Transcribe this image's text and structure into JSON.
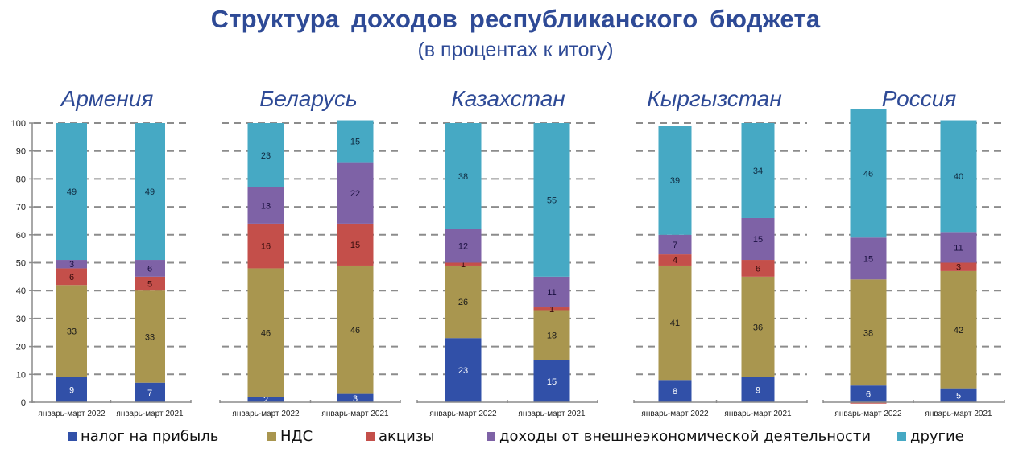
{
  "header": {
    "title": "Структура доходов республиканского бюджета",
    "subtitle": "(в процентах к итогу)"
  },
  "colors": {
    "profit_tax": "#3150a8",
    "vat": "#a9964f",
    "excise": "#c44f4a",
    "foreign_trade": "#7e62a6",
    "other": "#46a9c4",
    "panel_title": "#2e4a96",
    "grid": "#8c8c8c",
    "axis": "#8c8c8c"
  },
  "chart_data": {
    "type": "bar",
    "stacked": true,
    "title": "Структура доходов республиканского бюджета",
    "subtitle": "(в процентах к итогу)",
    "ylim": [
      0,
      100
    ],
    "yticks": [
      0,
      10,
      20,
      30,
      40,
      50,
      60,
      70,
      80,
      90,
      100
    ],
    "grid": true,
    "legend_position": "bottom",
    "series_keys": [
      "profit_tax",
      "vat",
      "excise",
      "foreign_trade",
      "other"
    ],
    "legend": [
      {
        "key": "profit_tax",
        "label": "налог на прибыль"
      },
      {
        "key": "vat",
        "label": "НДС"
      },
      {
        "key": "excise",
        "label": "акцизы"
      },
      {
        "key": "foreign_trade",
        "label": "доходы от внешнеэкономической деятельности"
      },
      {
        "key": "other",
        "label": "другие"
      }
    ],
    "panels": [
      {
        "country": "Армения",
        "categories": [
          "январь-март 2022",
          "январь-март 2021"
        ],
        "bars": [
          {
            "profit_tax": 9,
            "vat": 33,
            "excise": 6,
            "foreign_trade": 3,
            "other": 49
          },
          {
            "profit_tax": 7,
            "vat": 33,
            "excise": 5,
            "foreign_trade": 6,
            "other": 49
          }
        ]
      },
      {
        "country": "Беларусь",
        "categories": [
          "январь-март 2022",
          "январь-март 2021"
        ],
        "bars": [
          {
            "profit_tax": 2,
            "vat": 46,
            "excise": 16,
            "foreign_trade": 13,
            "other": 23
          },
          {
            "profit_tax": 3,
            "vat": 46,
            "excise": 15,
            "foreign_trade": 22,
            "other": 15
          }
        ]
      },
      {
        "country": "Казахстан",
        "categories": [
          "январь-март 2022",
          "январь-март 2021"
        ],
        "bars": [
          {
            "profit_tax": 23,
            "vat": 26,
            "excise": 1,
            "foreign_trade": 12,
            "other": 38
          },
          {
            "profit_tax": 15,
            "vat": 18,
            "excise": 1,
            "foreign_trade": 11,
            "other": 55
          }
        ]
      },
      {
        "country": "Кыргызстан",
        "categories": [
          "январь-март 2022",
          "январь-март 2021"
        ],
        "bars": [
          {
            "profit_tax": 8,
            "vat": 41,
            "excise": 4,
            "foreign_trade": 7,
            "other": 39
          },
          {
            "profit_tax": 9,
            "vat": 36,
            "excise": 6,
            "foreign_trade": 15,
            "other": 34
          }
        ]
      },
      {
        "country": "Россия",
        "categories": [
          "январь-март 2022",
          "январь-март 2021"
        ],
        "bars": [
          {
            "profit_tax": 6,
            "vat": 38,
            "excise": -0.5,
            "foreign_trade": 15,
            "other": 46
          },
          {
            "profit_tax": 5,
            "vat": 42,
            "excise": 3,
            "foreign_trade": 11,
            "other": 40
          }
        ]
      }
    ],
    "label_hidden": [
      {
        "panel": 4,
        "bar": 0,
        "key": "excise"
      }
    ]
  }
}
